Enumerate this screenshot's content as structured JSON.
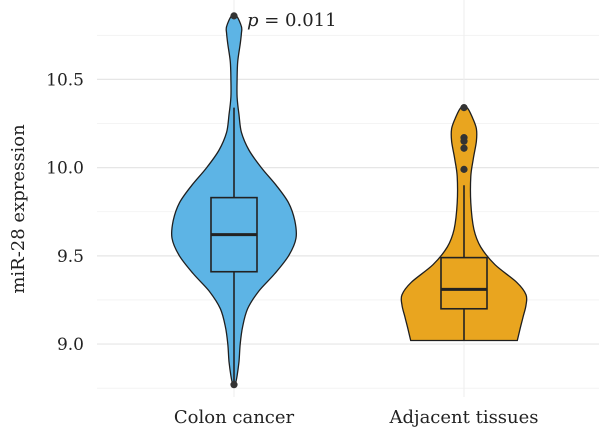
{
  "chart_data": {
    "type": "violin",
    "xlabel": "",
    "ylabel": "miR-28 expression",
    "ylim": [
      8.7,
      10.95
    ],
    "yticks": [
      "9.0",
      "9.5",
      "10.0",
      "10.5"
    ],
    "ytick_values": [
      9.0,
      9.5,
      10.0,
      10.5
    ],
    "categories": [
      "Colon cancer",
      "Adjacent tissues"
    ],
    "annotation": "p = 0.011",
    "annotation_p": "p",
    "annotation_rest": " = 0.011",
    "grid": true,
    "legend": "none",
    "series": [
      {
        "category": "Colon cancer",
        "color": "#5db4e5",
        "stroke": "#1f1f1f",
        "box": {
          "q1": 9.41,
          "median": 9.62,
          "q3": 9.83,
          "whisker_low": 8.77,
          "whisker_high": 10.34
        },
        "outliers": [
          10.86,
          8.77
        ],
        "density": [
          [
            8.77,
            0.02
          ],
          [
            8.82,
            0.05
          ],
          [
            8.9,
            0.08
          ],
          [
            9.0,
            0.1
          ],
          [
            9.1,
            0.14
          ],
          [
            9.2,
            0.22
          ],
          [
            9.3,
            0.4
          ],
          [
            9.4,
            0.66
          ],
          [
            9.5,
            0.88
          ],
          [
            9.6,
            1.0
          ],
          [
            9.7,
            0.98
          ],
          [
            9.8,
            0.88
          ],
          [
            9.9,
            0.68
          ],
          [
            10.0,
            0.44
          ],
          [
            10.1,
            0.24
          ],
          [
            10.2,
            0.12
          ],
          [
            10.3,
            0.08
          ],
          [
            10.4,
            0.05
          ],
          [
            10.5,
            0.05
          ],
          [
            10.6,
            0.06
          ],
          [
            10.7,
            0.1
          ],
          [
            10.76,
            0.12
          ],
          [
            10.8,
            0.12
          ],
          [
            10.86,
            0.04
          ]
        ]
      },
      {
        "category": "Adjacent tissues",
        "color": "#e9a51f",
        "stroke": "#1f1f1f",
        "box": {
          "q1": 9.2,
          "median": 9.31,
          "q3": 9.49,
          "whisker_low": 9.02,
          "whisker_high": 9.9
        },
        "outliers": [
          10.34,
          10.17,
          10.15,
          10.11,
          9.99
        ],
        "density": [
          [
            9.02,
            0.86
          ],
          [
            9.08,
            0.9
          ],
          [
            9.15,
            0.95
          ],
          [
            9.22,
            1.0
          ],
          [
            9.28,
            1.0
          ],
          [
            9.35,
            0.85
          ],
          [
            9.45,
            0.5
          ],
          [
            9.55,
            0.27
          ],
          [
            9.65,
            0.16
          ],
          [
            9.8,
            0.11
          ],
          [
            9.95,
            0.11
          ],
          [
            10.05,
            0.15
          ],
          [
            10.15,
            0.2
          ],
          [
            10.22,
            0.2
          ],
          [
            10.28,
            0.14
          ],
          [
            10.34,
            0.05
          ]
        ]
      }
    ]
  }
}
